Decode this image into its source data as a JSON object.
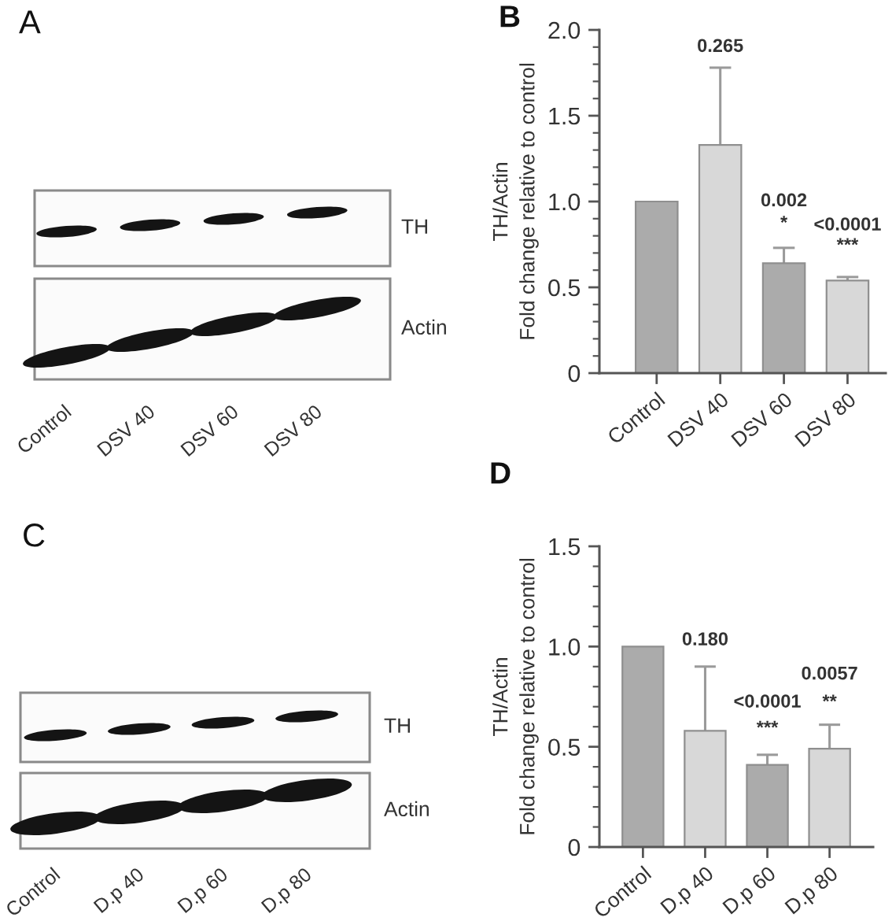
{
  "chart_data": [
    {
      "type": "other",
      "title": "A",
      "categories": [
        "Control",
        "DSV 40",
        "DSV 60",
        "DSV 80"
      ],
      "annotations": [
        "TH",
        "Actin"
      ]
    },
    {
      "type": "bar",
      "title": "B",
      "ylabel": "TH/Actin\nFold change relative to control",
      "categories": [
        "Control",
        "DSV 40",
        "DSV 60",
        "DSV 80"
      ],
      "values": [
        1.0,
        1.33,
        0.64,
        0.54
      ],
      "colors": [
        "#ababab",
        "#d8d8d8",
        "#ababab",
        "#d8d8d8"
      ],
      "errors": [
        null,
        [
          1.33,
          1.78
        ],
        [
          0.64,
          0.73
        ],
        [
          0.54,
          0.56
        ]
      ],
      "ylim": [
        0,
        2
      ],
      "yticks": [
        0,
        {
          "value": 0.1,
          "label": null
        },
        {
          "value": 0.2,
          "label": null
        },
        {
          "value": 0.3,
          "label": null
        },
        {
          "value": 0.4,
          "label": null
        },
        0.5,
        {
          "value": 0.6,
          "label": null
        },
        {
          "value": 0.7,
          "label": null
        },
        {
          "value": 0.8,
          "label": null
        },
        {
          "value": 0.9,
          "label": null
        },
        {
          "value": 1,
          "label": "1.0"
        },
        {
          "value": 1.1,
          "label": null
        },
        {
          "value": 1.2,
          "label": null
        },
        {
          "value": 1.3,
          "label": null
        },
        {
          "value": 1.4,
          "label": null
        },
        1.5,
        {
          "value": 1.6,
          "label": null
        },
        {
          "value": 1.7,
          "label": null
        },
        {
          "value": 1.8,
          "label": null
        },
        {
          "value": 1.9,
          "label": null
        },
        {
          "value": 2,
          "label": "2.0"
        }
      ],
      "annotations": [
        "0.265",
        "0.002",
        "*",
        "<0.0001",
        "***"
      ]
    },
    {
      "type": "other",
      "title": "C",
      "categories": [
        "Control",
        "D.p 40",
        "D.p 60",
        "D.p 80"
      ],
      "annotations": [
        "TH",
        "Actin"
      ]
    },
    {
      "type": "bar",
      "title": "D",
      "ylabel": "TH/Actin\nFold change relative to control",
      "categories": [
        "Control",
        "D.p 40",
        "D.p 60",
        "D.p 80"
      ],
      "values": [
        1.0,
        0.58,
        0.41,
        0.49
      ],
      "colors": [
        "#ababab",
        "#d8d8d8",
        "#ababab",
        "#d8d8d8"
      ],
      "errors": [
        null,
        [
          0.58,
          0.9
        ],
        [
          0.41,
          0.46
        ],
        [
          0.49,
          0.61
        ]
      ],
      "ylim": [
        0,
        1.5
      ],
      "yticks": [
        0,
        {
          "value": 0.1,
          "label": null
        },
        {
          "value": 0.2,
          "label": null
        },
        {
          "value": 0.3,
          "label": null
        },
        {
          "value": 0.4,
          "label": null
        },
        0.5,
        {
          "value": 0.6,
          "label": null
        },
        {
          "value": 0.7,
          "label": null
        },
        {
          "value": 0.8,
          "label": null
        },
        {
          "value": 0.9,
          "label": null
        },
        {
          "value": 1,
          "label": "1.0"
        },
        {
          "value": 1.1,
          "label": null
        },
        {
          "value": 1.2,
          "label": null
        },
        {
          "value": 1.3,
          "label": null
        },
        {
          "value": 1.4,
          "label": null
        },
        1.5
      ],
      "annotations": [
        "0.180",
        "<0.0001",
        "***",
        "0.0057",
        "**"
      ]
    }
  ]
}
